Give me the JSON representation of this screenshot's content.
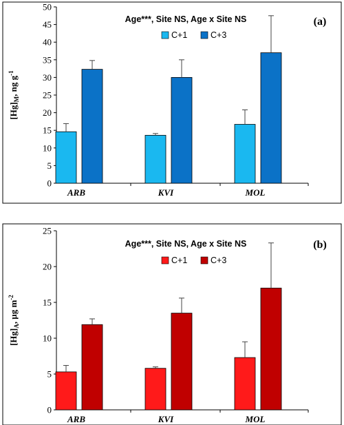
{
  "chart_data": [
    {
      "type": "bar",
      "panel_label": "(a)",
      "annotation": "Age***, Site NS, Age x Site NS",
      "ylabel_main": "[Hg]",
      "ylabel_sub": "M",
      "ylabel_unit": ", ng g",
      "ylabel_sup": "-1",
      "ylim": [
        0,
        50
      ],
      "yticks": [
        0,
        5,
        10,
        15,
        20,
        25,
        30,
        35,
        40,
        45,
        50
      ],
      "categories": [
        "ARB",
        "KVI",
        "MOL"
      ],
      "legend_position": "top-center",
      "series": [
        {
          "name": "C+1",
          "color": "#1ab8f0",
          "values": [
            14.6,
            13.6,
            16.7
          ],
          "errors": [
            2.3,
            0.5,
            4.1
          ]
        },
        {
          "name": "C+3",
          "color": "#0b72c7",
          "values": [
            32.3,
            30.0,
            37.0
          ],
          "errors": [
            2.5,
            5.0,
            10.5
          ]
        }
      ]
    },
    {
      "type": "bar",
      "panel_label": "(b)",
      "annotation": "Age***, Site NS, Age x Site NS",
      "ylabel_main": "[Hg]",
      "ylabel_sub": "A",
      "ylabel_unit": ", µg m",
      "ylabel_sup": "-2",
      "ylim": [
        0,
        25
      ],
      "yticks": [
        0,
        5,
        10,
        15,
        20,
        25
      ],
      "categories": [
        "ARB",
        "KVI",
        "MOL"
      ],
      "legend_position": "top-center",
      "series": [
        {
          "name": "C+1",
          "color": "#ff1a1a",
          "values": [
            5.3,
            5.8,
            7.3
          ],
          "errors": [
            0.9,
            0.2,
            2.2
          ]
        },
        {
          "name": "C+3",
          "color": "#c00000",
          "values": [
            11.9,
            13.5,
            17.0
          ],
          "errors": [
            0.8,
            2.1,
            6.3
          ]
        }
      ]
    }
  ]
}
